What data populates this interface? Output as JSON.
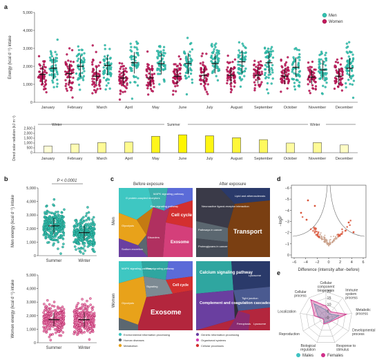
{
  "panel_labels": {
    "a": "a",
    "b": "b",
    "c": "c",
    "d": "d",
    "e": "e"
  },
  "legend_a": {
    "men": "Men",
    "women": "Women",
    "men_color": "#33c2b0",
    "women_color": "#c2185b"
  },
  "chart_data": [
    {
      "id": "energy-by-month",
      "type": "scatter",
      "ylabel": "Energy (kcal d⁻¹) intake",
      "ylim": [
        0,
        5000
      ],
      "yticks": [
        "0",
        "1,000",
        "2,000",
        "3,000",
        "4,000",
        "5,000"
      ],
      "categories": [
        "January",
        "February",
        "March",
        "April",
        "May",
        "June",
        "July",
        "August",
        "September",
        "October",
        "November",
        "December"
      ],
      "series": [
        {
          "name": "Women",
          "means": [
            1550,
            1600,
            1450,
            1350,
            1350,
            1450,
            1500,
            1500,
            1500,
            1450,
            1400,
            1450
          ],
          "sd": [
            500,
            550,
            450,
            400,
            450,
            450,
            450,
            450,
            450,
            450,
            400,
            450
          ]
        },
        {
          "name": "Men",
          "means": [
            1900,
            2000,
            2050,
            2200,
            2150,
            2150,
            2150,
            2250,
            2200,
            1950,
            1800,
            1900
          ],
          "sd": [
            600,
            600,
            550,
            600,
            600,
            600,
            550,
            650,
            600,
            550,
            550,
            550
          ]
        }
      ]
    },
    {
      "id": "solar-radiation",
      "type": "bar",
      "ylabel": "Direct solar radiation (kJ m⁻²)",
      "ylim": [
        0,
        2500
      ],
      "yticks": [
        "0",
        "500",
        "1,000",
        "1,500",
        "2,000",
        "2,500"
      ],
      "categories": [
        "January",
        "February",
        "March",
        "April",
        "May",
        "June",
        "July",
        "August",
        "September",
        "October",
        "November",
        "December"
      ],
      "values": [
        700,
        900,
        1050,
        1100,
        1700,
        1850,
        1750,
        1550,
        1350,
        1000,
        1050,
        800
      ],
      "seasons": [
        "Winter",
        "Summer",
        "Winter"
      ]
    },
    {
      "id": "men-summer-winter",
      "type": "scatter",
      "ylabel": "Men energy (kcal d⁻¹) intake",
      "categories": [
        "Summer",
        "Winter"
      ],
      "means": [
        2200,
        1700
      ],
      "sd": [
        600,
        550
      ],
      "ylim": [
        0,
        5000
      ],
      "yticks": [
        "0",
        "1,000",
        "2,000",
        "3,000",
        "4,000",
        "5,000"
      ],
      "annotation": "P < 0.0001"
    },
    {
      "id": "women-summer-winter",
      "type": "scatter",
      "ylabel": "Women energy (kcal d⁻¹) intake",
      "categories": [
        "Summer",
        "Winter"
      ],
      "means": [
        1700,
        1700
      ],
      "sd": [
        500,
        550
      ],
      "ylim": [
        0,
        5000
      ],
      "yticks": [
        "0",
        "1,000",
        "2,000",
        "3,000",
        "4,000",
        "5,000"
      ]
    },
    {
      "id": "volcano",
      "type": "scatter",
      "xlabel": "Difference (intensity after−before)",
      "ylabel": "−logP",
      "xticks": [
        "−6",
        "−4",
        "−2",
        "0",
        "2",
        "4",
        "6"
      ],
      "yticks": [
        "0",
        "−1",
        "−2",
        "−3",
        "−4",
        "−5",
        "−6"
      ]
    },
    {
      "id": "radar",
      "type": "radar",
      "axes": [
        "Cellular component biogenesis",
        "Immune system process",
        "Metabolic process",
        "Developmental process",
        "Response to stimulus",
        "Biological regulation",
        "Reproduction",
        "Localization",
        "Cellular process"
      ],
      "rticks": [
        "0",
        "5",
        "10",
        "15",
        "20"
      ],
      "series": [
        {
          "name": "Males",
          "values": [
            6,
            4,
            10,
            4,
            3,
            4,
            2,
            6,
            14
          ]
        },
        {
          "name": "Females",
          "values": [
            9,
            6,
            16,
            5,
            4,
            5,
            2,
            9,
            18
          ]
        }
      ]
    }
  ],
  "panel_c": {
    "before": "Before exposure",
    "after": "After exposure",
    "men": "Men",
    "women": "Women",
    "cells_men_before": [
      "Cell cycle",
      "Exosome",
      "G protein-coupled receptors",
      "MAPK signaling pathway",
      "Ras signaling pathway",
      "Glycolysis",
      "Signaling",
      "Disorders",
      "Sodium excretion"
    ],
    "cells_men_after": [
      "Transport",
      "Neuroactive ligand-receptor interaction",
      "Pathways in cancer",
      "Proteoglycans in cancer",
      "Lipid and atherosclerosis",
      "Other"
    ],
    "cells_women_before": [
      "Exosome",
      "Cell cycle",
      "Glycolysis",
      "MAPK signaling pathway",
      "Ras signaling pathway",
      "Signaling",
      "Degradation"
    ],
    "cells_women_after": [
      "Complement and coagulation cascades",
      "Calcium signaling pathway",
      "Tight junction",
      "Lysosome",
      "Ferroptosis",
      "Signaling"
    ],
    "legend": [
      {
        "label": "Environmental information processing",
        "color": "#3ec7c2"
      },
      {
        "label": "Genetic information processing",
        "color": "#6a3fa0"
      },
      {
        "label": "Human diseases",
        "color": "#5b6770"
      },
      {
        "label": "Organismal systems",
        "color": "#d43fb5"
      },
      {
        "label": "Metabolism",
        "color": "#e8a21a"
      },
      {
        "label": "Cellular processes",
        "color": "#d32f2f"
      }
    ]
  },
  "radar_legend": {
    "males": "Males",
    "females": "Females",
    "males_color": "#3fc2c2",
    "females_color": "#d02f8a"
  }
}
